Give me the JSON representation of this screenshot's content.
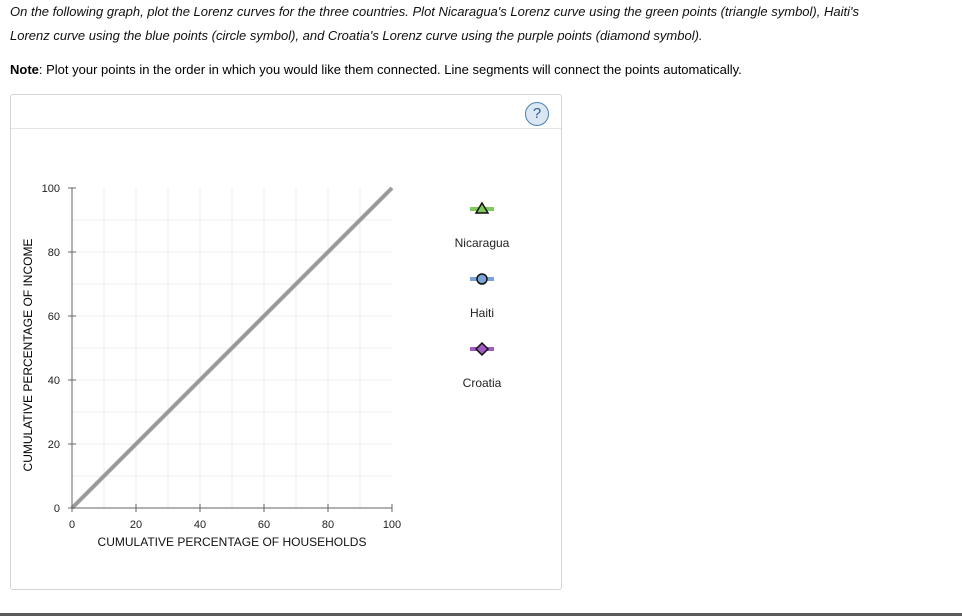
{
  "instructions": {
    "line1": "On the following graph, plot the Lorenz curves for the three countries. Plot Nicaragua's Lorenz curve using the green points (triangle symbol), Haiti's",
    "line2": "Lorenz curve using the blue points (circle symbol), and Croatia's Lorenz curve using the purple points (diamond symbol).",
    "note_label": "Note",
    "note_text": ": Plot your points in the order in which you would like them connected. Line segments will connect the points automatically."
  },
  "help_label": "?",
  "legend": [
    {
      "name": "Nicaragua",
      "symbol": "triangle",
      "color": "#7ecb5b",
      "icon": "triangle-icon"
    },
    {
      "name": "Haiti",
      "symbol": "circle",
      "color": "#7aa3d6",
      "icon": "circle-icon"
    },
    {
      "name": "Croatia",
      "symbol": "diamond",
      "color": "#a05cc4",
      "icon": "diamond-icon"
    }
  ],
  "chart_data": {
    "type": "line",
    "xlabel": "CUMULATIVE PERCENTAGE OF HOUSEHOLDS",
    "ylabel": "CUMULATIVE PERCENTAGE OF INCOME",
    "xlim": [
      0,
      100
    ],
    "ylim": [
      0,
      100
    ],
    "xticks": [
      0,
      20,
      40,
      60,
      80,
      100
    ],
    "yticks": [
      0,
      20,
      40,
      60,
      80,
      100
    ],
    "grid": true,
    "series": [
      {
        "x": [
          0,
          100
        ],
        "y": [
          0,
          100
        ],
        "color": "#9a9a9a"
      }
    ]
  }
}
